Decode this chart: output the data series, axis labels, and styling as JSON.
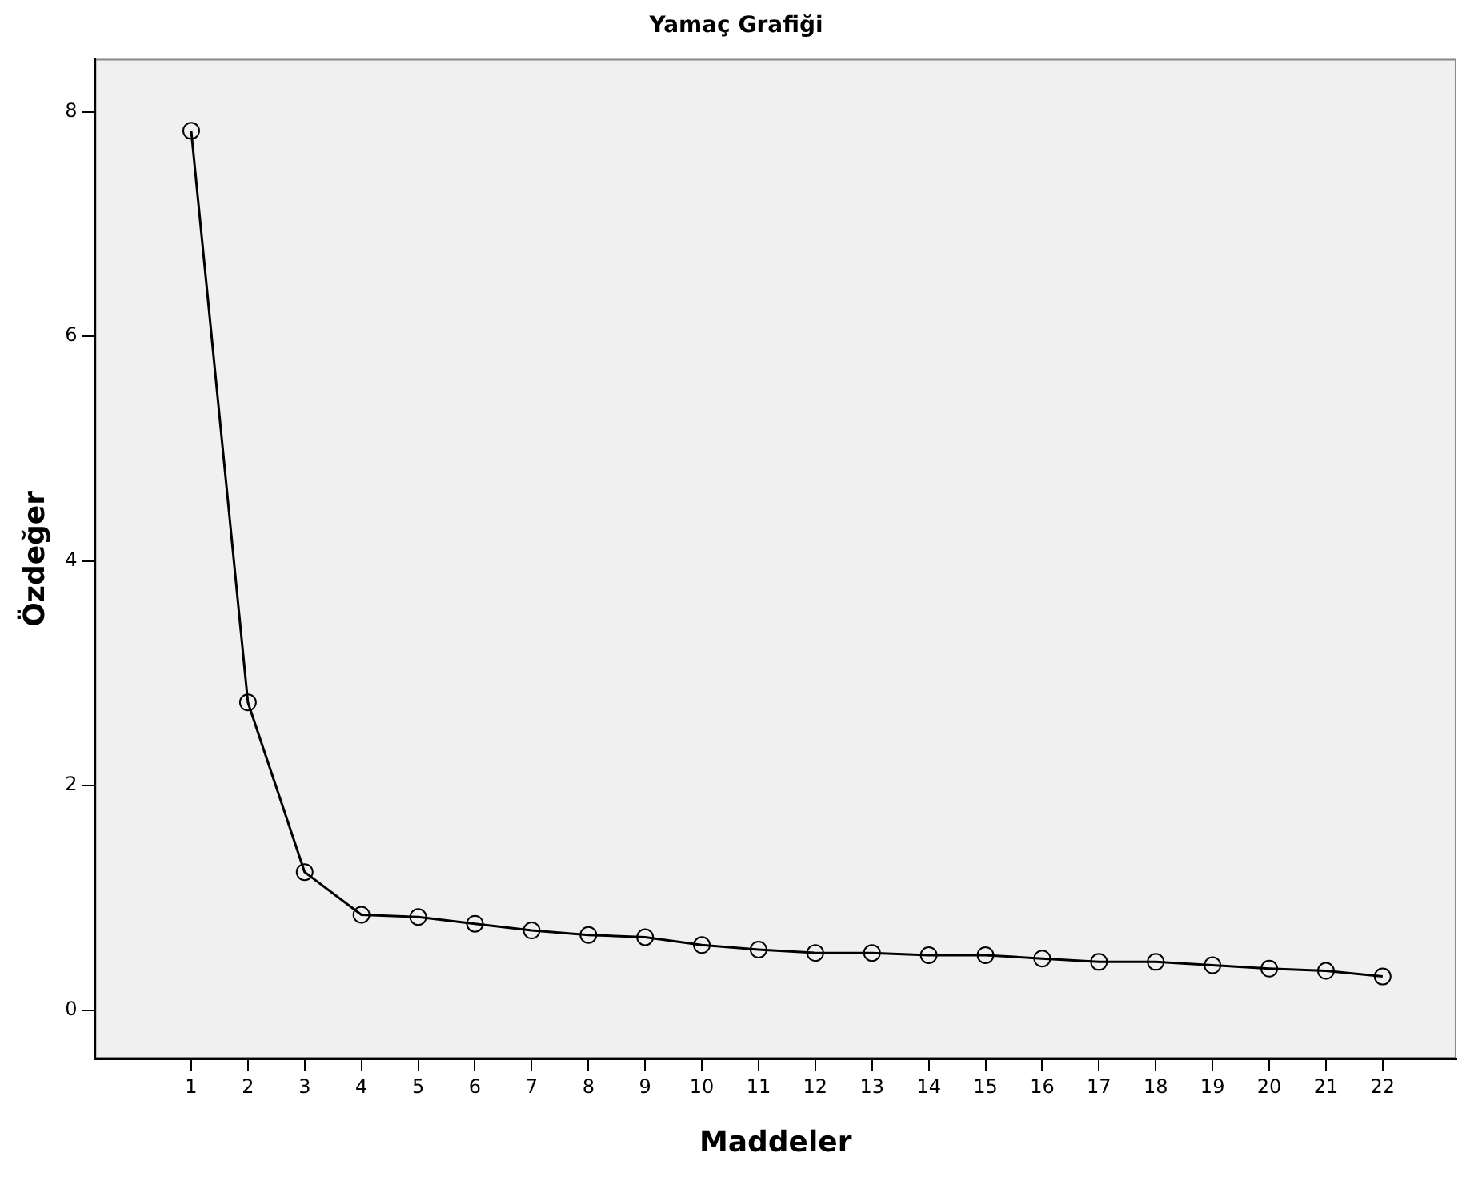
{
  "chart_data": {
    "type": "line",
    "title": "Yamaç Grafiği",
    "xlabel": "Maddeler",
    "ylabel": "Özdeğer",
    "x": [
      1,
      2,
      3,
      4,
      5,
      6,
      7,
      8,
      9,
      10,
      11,
      12,
      13,
      14,
      15,
      16,
      17,
      18,
      19,
      20,
      21,
      22
    ],
    "series": [
      {
        "color": "#000000",
        "values": [
          7.83,
          2.74,
          1.23,
          0.85,
          0.83,
          0.77,
          0.71,
          0.67,
          0.65,
          0.58,
          0.54,
          0.51,
          0.51,
          0.49,
          0.49,
          0.46,
          0.43,
          0.43,
          0.4,
          0.37,
          0.35,
          0.3
        ]
      }
    ],
    "xlim": [
      -0.7,
      23.3
    ],
    "xticks": [
      1,
      2,
      3,
      4,
      5,
      6,
      7,
      8,
      9,
      10,
      11,
      12,
      13,
      14,
      15,
      16,
      17,
      18,
      19,
      20,
      21,
      22
    ],
    "ylim": [
      -0.43,
      8.47
    ],
    "yticks": [
      0,
      2,
      4,
      6,
      8
    ],
    "grid": false,
    "legend": false,
    "marker": "circle",
    "line_style": "solid"
  }
}
